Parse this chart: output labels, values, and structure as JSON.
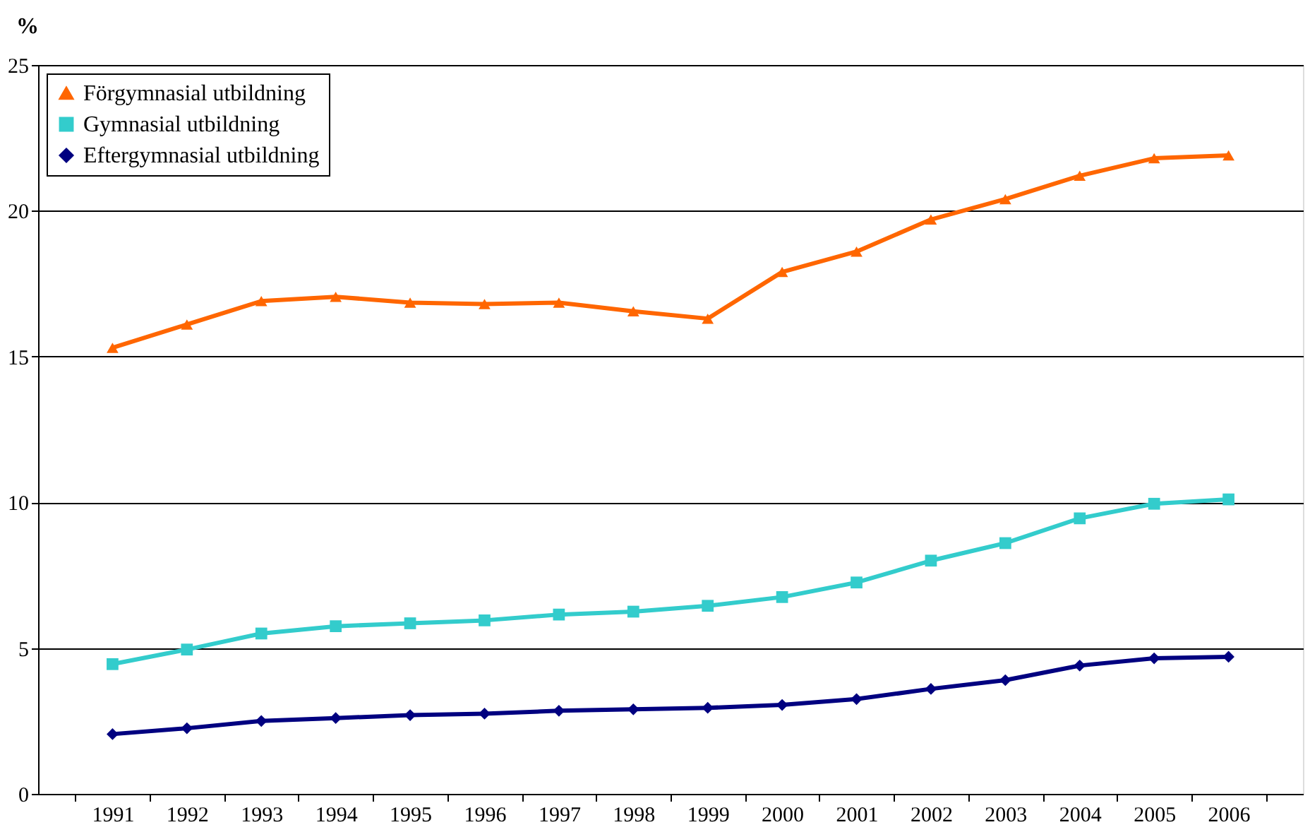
{
  "chart_data": {
    "type": "line",
    "ylabel": "%",
    "categories": [
      "1991",
      "1992",
      "1993",
      "1994",
      "1995",
      "1996",
      "1997",
      "1998",
      "1999",
      "2000",
      "2001",
      "2002",
      "2003",
      "2004",
      "2005",
      "2006"
    ],
    "series": [
      {
        "name": "Förgymnasial utbildning",
        "color": "#ff6600",
        "marker": "triangle",
        "values": [
          15.3,
          16.1,
          16.9,
          17.05,
          16.85,
          16.8,
          16.85,
          16.55,
          16.3,
          17.9,
          18.6,
          19.7,
          20.4,
          21.2,
          21.8,
          21.9
        ]
      },
      {
        "name": "Gymnasial utbildning",
        "color": "#33cccc",
        "marker": "square",
        "values": [
          4.45,
          4.95,
          5.5,
          5.75,
          5.85,
          5.95,
          6.15,
          6.25,
          6.45,
          6.75,
          7.25,
          8.0,
          8.6,
          9.45,
          9.95,
          10.1
        ]
      },
      {
        "name": "Eftergymnasial utbildning",
        "color": "#000080",
        "marker": "diamond",
        "values": [
          2.05,
          2.25,
          2.5,
          2.6,
          2.7,
          2.75,
          2.85,
          2.9,
          2.95,
          3.05,
          3.25,
          3.6,
          3.9,
          4.4,
          4.65,
          4.7
        ]
      }
    ],
    "ylim": [
      0,
      25
    ],
    "yticks": [
      0,
      5,
      10,
      15,
      20,
      25
    ],
    "grid": "y",
    "legend": "top left"
  }
}
